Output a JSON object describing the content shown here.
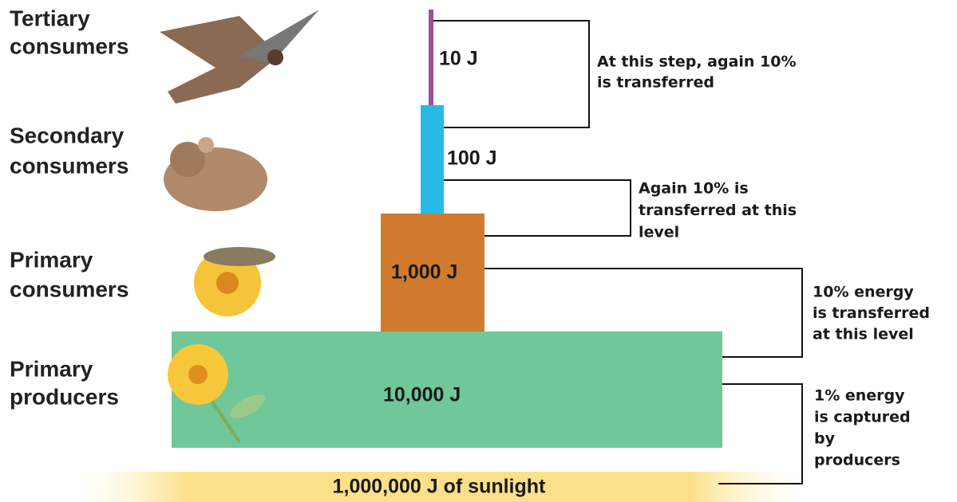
{
  "levels": [
    {
      "label": [
        "Tertiary",
        "consumers"
      ],
      "energy": "10 J"
    },
    {
      "label": [
        "Secondary",
        "consumers"
      ],
      "energy": "100 J"
    },
    {
      "label": [
        "Primary",
        "consumers"
      ],
      "energy": "1,000 J"
    },
    {
      "label": [
        "Primary",
        "producers"
      ],
      "energy": "10,000 J"
    }
  ],
  "sunlight": "1,000,000 J of sunlight",
  "annotations": [
    [
      "At this step, again 10%",
      "is transferred"
    ],
    [
      "Again 10% is",
      "transferred at this",
      "level"
    ],
    [
      "10% energy",
      "is transferred",
      "at this level"
    ],
    [
      "1% energy",
      "is captured",
      "by",
      "producers"
    ]
  ]
}
